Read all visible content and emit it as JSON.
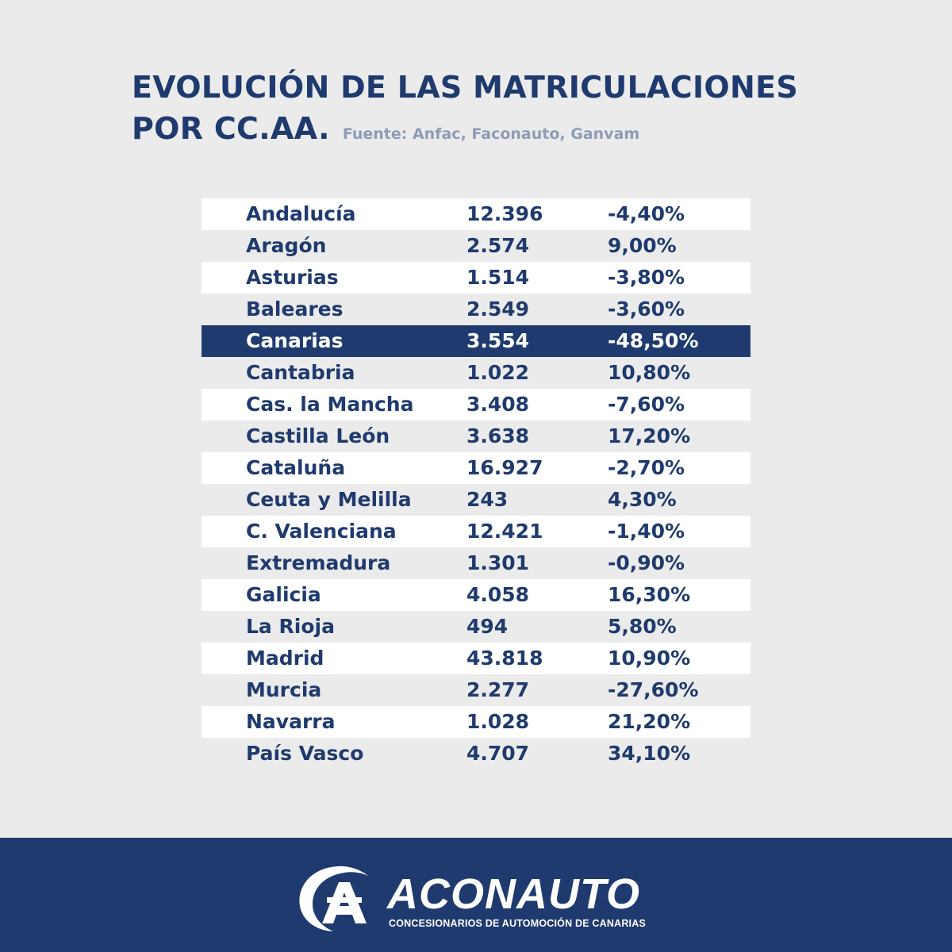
{
  "header": {
    "title_line1": "EVOLUCIÓN DE LAS MATRICULACIONES",
    "title_line2": "POR CC.AA.",
    "source": "Fuente: Anfac, Faconauto, Ganvam"
  },
  "colors": {
    "navy": "#1f3a6e",
    "background": "#ebebeb",
    "stripe": "#ffffff",
    "source_text": "#8e9cb6"
  },
  "chart_data": {
    "type": "table",
    "title": "EVOLUCIÓN DE LAS MATRICULACIONES POR CC.AA.",
    "subtitle": "Fuente: Anfac, Faconauto, Ganvam",
    "highlighted_row": "Canarias",
    "rows": [
      {
        "region": "Andalucía",
        "value": "12.396",
        "change": "-4,40%"
      },
      {
        "region": "Aragón",
        "value": "2.574",
        "change": "9,00%"
      },
      {
        "region": "Asturias",
        "value": "1.514",
        "change": "-3,80%"
      },
      {
        "region": "Baleares",
        "value": "2.549",
        "change": "-3,60%"
      },
      {
        "region": "Canarias",
        "value": "3.554",
        "change": "-48,50%"
      },
      {
        "region": "Cantabria",
        "value": "1.022",
        "change": "10,80%"
      },
      {
        "region": "Cas. la Mancha",
        "value": "3.408",
        "change": "-7,60%"
      },
      {
        "region": "Castilla León",
        "value": "3.638",
        "change": "17,20%"
      },
      {
        "region": "Cataluña",
        "value": "16.927",
        "change": "-2,70%"
      },
      {
        "region": "Ceuta y Melilla",
        "value": "243",
        "change": "4,30%"
      },
      {
        "region": "C. Valenciana",
        "value": "12.421",
        "change": "-1,40%"
      },
      {
        "region": "Extremadura",
        "value": "1.301",
        "change": "-0,90%"
      },
      {
        "region": "Galicia",
        "value": "4.058",
        "change": "16,30%"
      },
      {
        "region": "La Rioja",
        "value": "494",
        "change": "5,80%"
      },
      {
        "region": "Madrid",
        "value": "43.818",
        "change": "10,90%"
      },
      {
        "region": "Murcia",
        "value": "2.277",
        "change": "-27,60%"
      },
      {
        "region": "Navarra",
        "value": "1.028",
        "change": "21,20%"
      },
      {
        "region": "País Vasco",
        "value": "4.707",
        "change": "34,10%"
      }
    ]
  },
  "footer": {
    "brand": "ACONAUTO",
    "tagline": "CONCESIONARIOS DE AUTOMOCIÓN DE CANARIAS",
    "logo_icon": "aconauto-logo-icon"
  }
}
